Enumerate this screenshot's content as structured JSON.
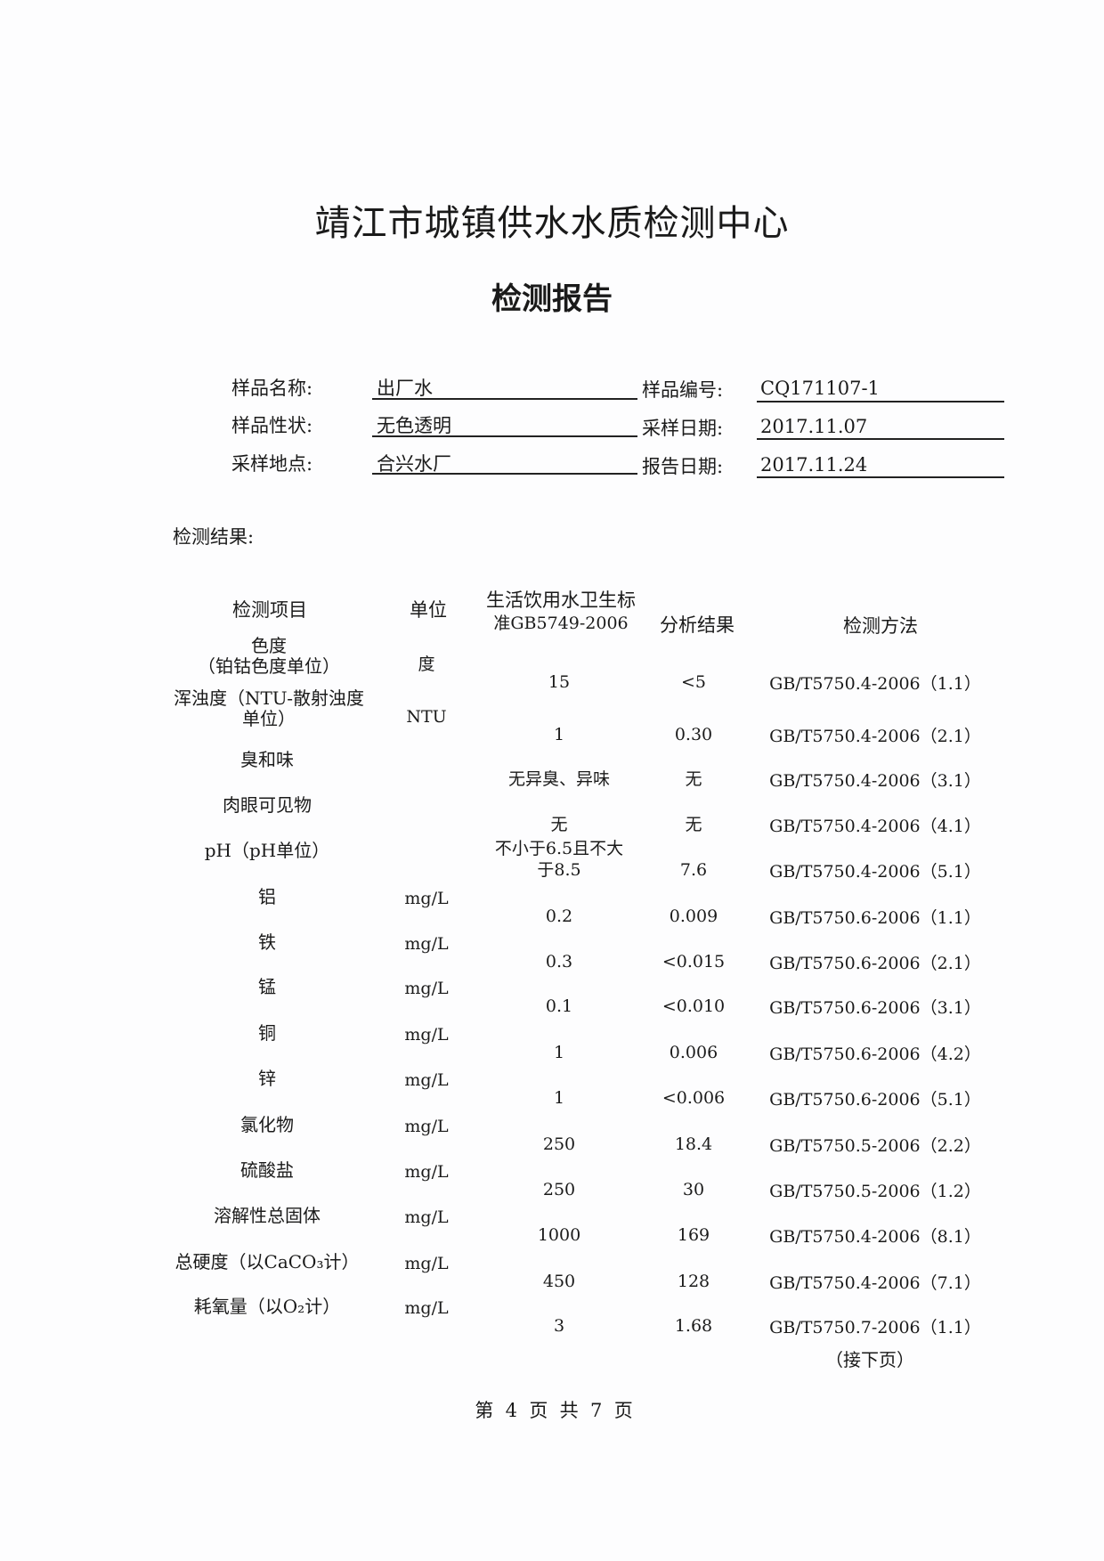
{
  "header": {
    "org": "靖江市城镇供水水质检测中心",
    "title": "检测报告"
  },
  "info": {
    "sample_name_label": "样品名称:",
    "sample_name": "出厂水",
    "sample_no_label": "样品编号:",
    "sample_no": "CQ171107-1",
    "sample_trait_label": "样品性状:",
    "sample_trait": "无色透明",
    "sampling_date_label": "采样日期:",
    "sampling_date": "2017.11.07",
    "sampling_site_label": "采样地点:",
    "sampling_site": "合兴水厂",
    "report_date_label": "报告日期:",
    "report_date": "2017.11.24"
  },
  "results_label": "检测结果:",
  "table": {
    "columns": [
      "检测项目",
      "单位",
      "生活饮用水卫生标",
      "准GB5749-2006",
      "分析结果",
      "检测方法"
    ],
    "rows": [
      {
        "item": "色度",
        "item2": "（铂钴色度单位）",
        "unit": "度",
        "standard": "15",
        "result": "<5",
        "method": "GB/T5750.4-2006（1.1）"
      },
      {
        "item": "浑浊度（NTU-散射浊度",
        "item2": "单位）",
        "unit": "NTU",
        "standard": "1",
        "result": "0.30",
        "method": "GB/T5750.4-2006（2.1）"
      },
      {
        "item": "臭和味",
        "unit": "",
        "standard": "无异臭、异味",
        "result": "无",
        "method": "GB/T5750.4-2006（3.1）"
      },
      {
        "item": "肉眼可见物",
        "unit": "",
        "standard": "无",
        "result": "无",
        "method": "GB/T5750.4-2006（4.1）"
      },
      {
        "item": "pH（pH单位）",
        "unit": "",
        "standard0": "不小于6.5且不大",
        "standard": "于8.5",
        "result": "7.6",
        "method": "GB/T5750.4-2006（5.1）"
      },
      {
        "item": "铝",
        "unit": "mg/L",
        "standard": "0.2",
        "result": "0.009",
        "method": "GB/T5750.6-2006（1.1）"
      },
      {
        "item": "铁",
        "unit": "mg/L",
        "standard": "0.3",
        "result": "<0.015",
        "method": "GB/T5750.6-2006（2.1）"
      },
      {
        "item": "锰",
        "unit": "mg/L",
        "standard": "0.1",
        "result": "<0.010",
        "method": "GB/T5750.6-2006（3.1）"
      },
      {
        "item": "铜",
        "unit": "mg/L",
        "standard": "1",
        "result": "0.006",
        "method": "GB/T5750.6-2006（4.2）"
      },
      {
        "item": "锌",
        "unit": "mg/L",
        "standard": "1",
        "result": "<0.006",
        "method": "GB/T5750.6-2006（5.1）"
      },
      {
        "item": "氯化物",
        "unit": "mg/L",
        "standard": "250",
        "result": "18.4",
        "method": "GB/T5750.5-2006（2.2）"
      },
      {
        "item": "硫酸盐",
        "unit": "mg/L",
        "standard": "250",
        "result": "30",
        "method": "GB/T5750.5-2006（1.2）"
      },
      {
        "item": "溶解性总固体",
        "unit": "mg/L",
        "standard": "1000",
        "result": "169",
        "method": "GB/T5750.4-2006（8.1）"
      },
      {
        "item": "总硬度（以CaCO₃计）",
        "unit": "mg/L",
        "standard": "450",
        "result": "128",
        "method": "GB/T5750.4-2006（7.1）"
      },
      {
        "item": "耗氧量（以O₂计）",
        "unit": "mg/L",
        "standard": "3",
        "result": "1.68",
        "method": "GB/T5750.7-2006（1.1）"
      }
    ]
  },
  "continued": "（接下页）",
  "footer": {
    "page_text": "第  4  页  共  7  页"
  }
}
